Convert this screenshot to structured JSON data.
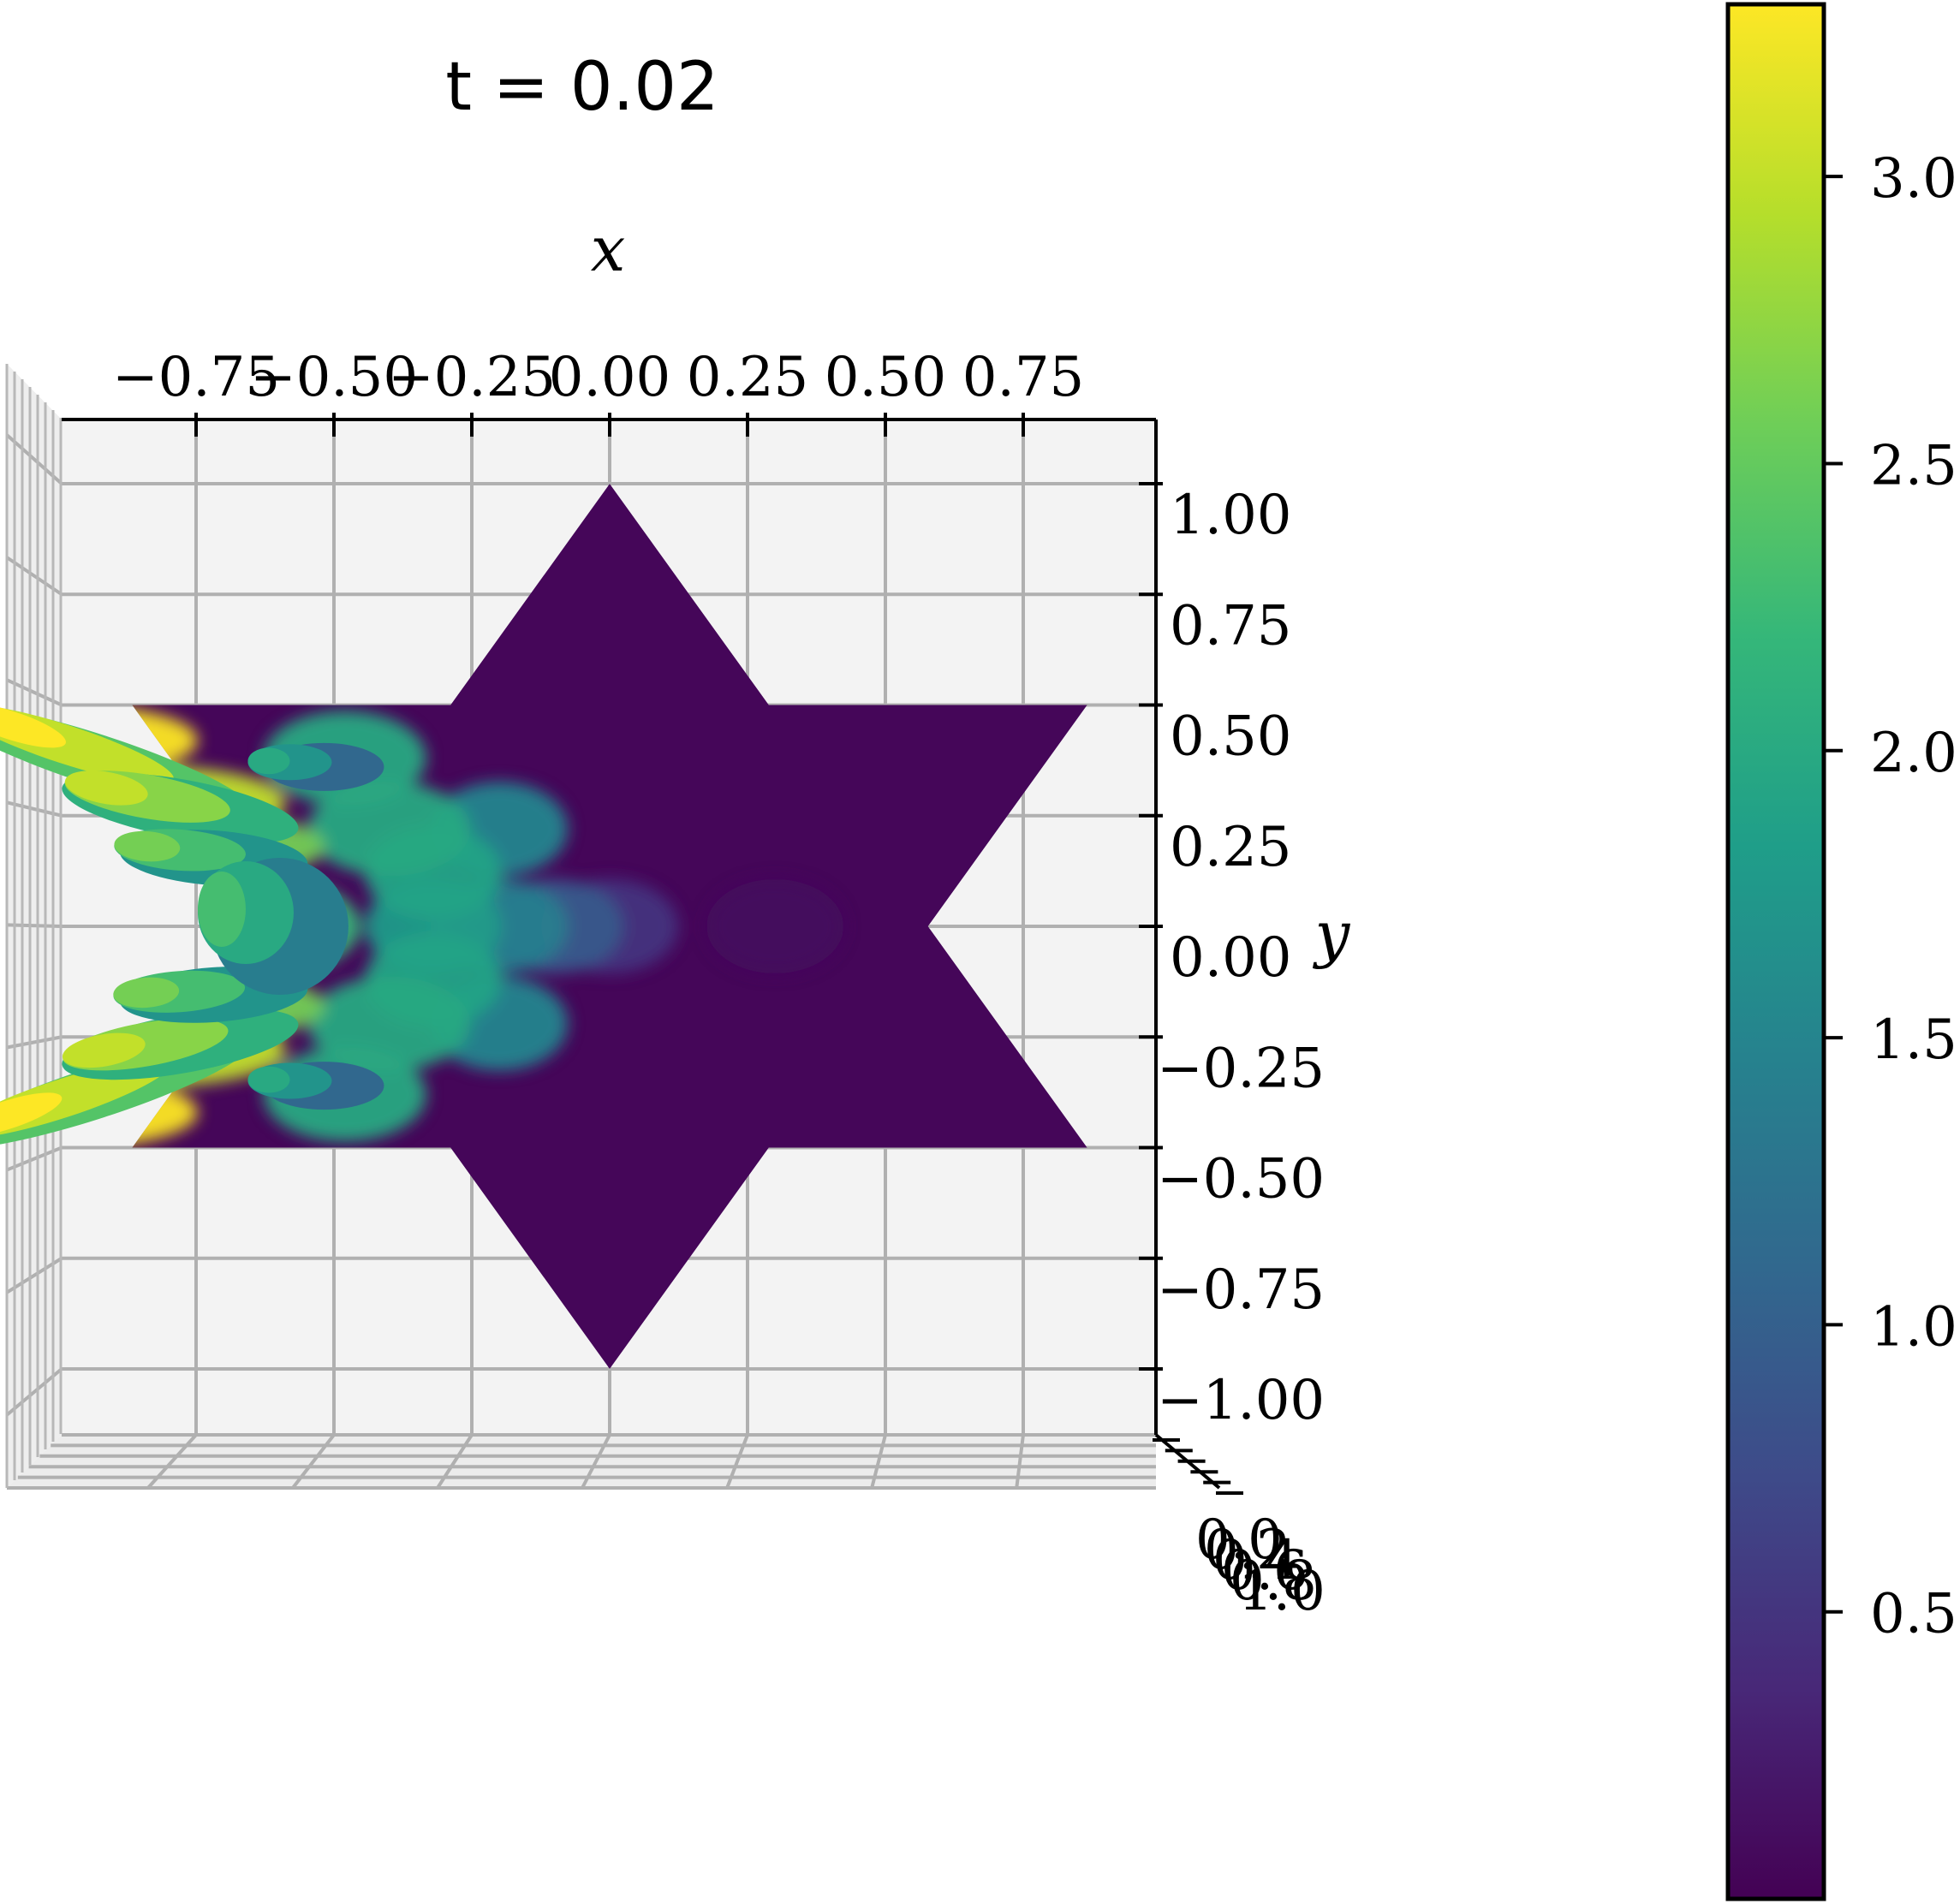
{
  "chart_data": {
    "type": "surface",
    "title": "t = 0.02",
    "xlabel": "x",
    "ylabel": "y",
    "x_ticks": [
      "−0.75",
      "−0.50",
      "−0.25",
      "0.00",
      "0.25",
      "0.50",
      "0.75"
    ],
    "x_tick_values": [
      -0.75,
      -0.5,
      -0.25,
      0.0,
      0.25,
      0.5,
      0.75
    ],
    "y_ticks": [
      "1.00",
      "0.75",
      "0.50",
      "0.25",
      "0.00",
      "−0.25",
      "−0.50",
      "−0.75",
      "−1.00"
    ],
    "y_tick_values": [
      1.0,
      0.75,
      0.5,
      0.25,
      0.0,
      -0.25,
      -0.5,
      -0.75,
      -1.0
    ],
    "z_ticks": [
      "0.0",
      "0.2",
      "0.4",
      "0.6",
      "0.8",
      "1.0"
    ],
    "xlim": [
      -1.0,
      1.0
    ],
    "ylim": [
      -1.15,
      1.15
    ],
    "domain_shape": "hexagram",
    "domain_vertices": [
      [
        0.0,
        1.0
      ],
      [
        0.2887,
        0.5
      ],
      [
        0.866,
        0.5
      ],
      [
        0.5774,
        0.0
      ],
      [
        0.866,
        -0.5
      ],
      [
        0.2887,
        -0.5
      ],
      [
        0.0,
        -1.0
      ],
      [
        -0.2887,
        -0.5
      ],
      [
        -0.866,
        -0.5
      ],
      [
        -0.5774,
        0.0
      ],
      [
        -0.866,
        0.5
      ],
      [
        -0.2887,
        0.5
      ]
    ],
    "colorbar": {
      "colormap": "viridis",
      "range": [
        0.0,
        3.3
      ],
      "ticks": [
        "0.5",
        "1.0",
        "1.5",
        "2.0",
        "2.5",
        "3.0"
      ],
      "tick_values": [
        0.5,
        1.0,
        1.5,
        2.0,
        2.5,
        3.0
      ]
    },
    "colormap_stops": [
      "#440154",
      "#482878",
      "#3e4a89",
      "#31688e",
      "#26828e",
      "#1f9e89",
      "#35b779",
      "#6ece58",
      "#b5de2b",
      "#fde725"
    ],
    "peaks": [
      {
        "x": -0.98,
        "y": 0.42,
        "value": 3.3
      },
      {
        "x": -0.98,
        "y": -0.42,
        "value": 3.3
      },
      {
        "x": -0.82,
        "y": 0.28,
        "value": 3.0
      },
      {
        "x": -0.82,
        "y": -0.28,
        "value": 3.0
      },
      {
        "x": -0.75,
        "y": 0.18,
        "value": 2.6
      },
      {
        "x": -0.75,
        "y": -0.18,
        "value": 2.6
      },
      {
        "x": -0.6,
        "y": 0.0,
        "value": 2.2
      },
      {
        "x": -0.48,
        "y": 0.38,
        "value": 2.0
      },
      {
        "x": -0.48,
        "y": -0.38,
        "value": 2.0
      },
      {
        "x": -0.4,
        "y": 0.22,
        "value": 2.0
      },
      {
        "x": -0.4,
        "y": -0.22,
        "value": 2.0
      },
      {
        "x": -0.32,
        "y": 0.12,
        "value": 1.9
      },
      {
        "x": -0.32,
        "y": 0.0,
        "value": 1.8
      },
      {
        "x": -0.32,
        "y": -0.12,
        "value": 1.9
      },
      {
        "x": -0.2,
        "y": 0.22,
        "value": 1.5
      },
      {
        "x": -0.2,
        "y": -0.22,
        "value": 1.5
      },
      {
        "x": -0.2,
        "y": 0.0,
        "value": 1.4
      },
      {
        "x": -0.1,
        "y": 0.0,
        "value": 0.9
      },
      {
        "x": 0.0,
        "y": 0.0,
        "value": 0.5
      },
      {
        "x": 0.3,
        "y": 0.0,
        "value": 0.1
      }
    ]
  }
}
